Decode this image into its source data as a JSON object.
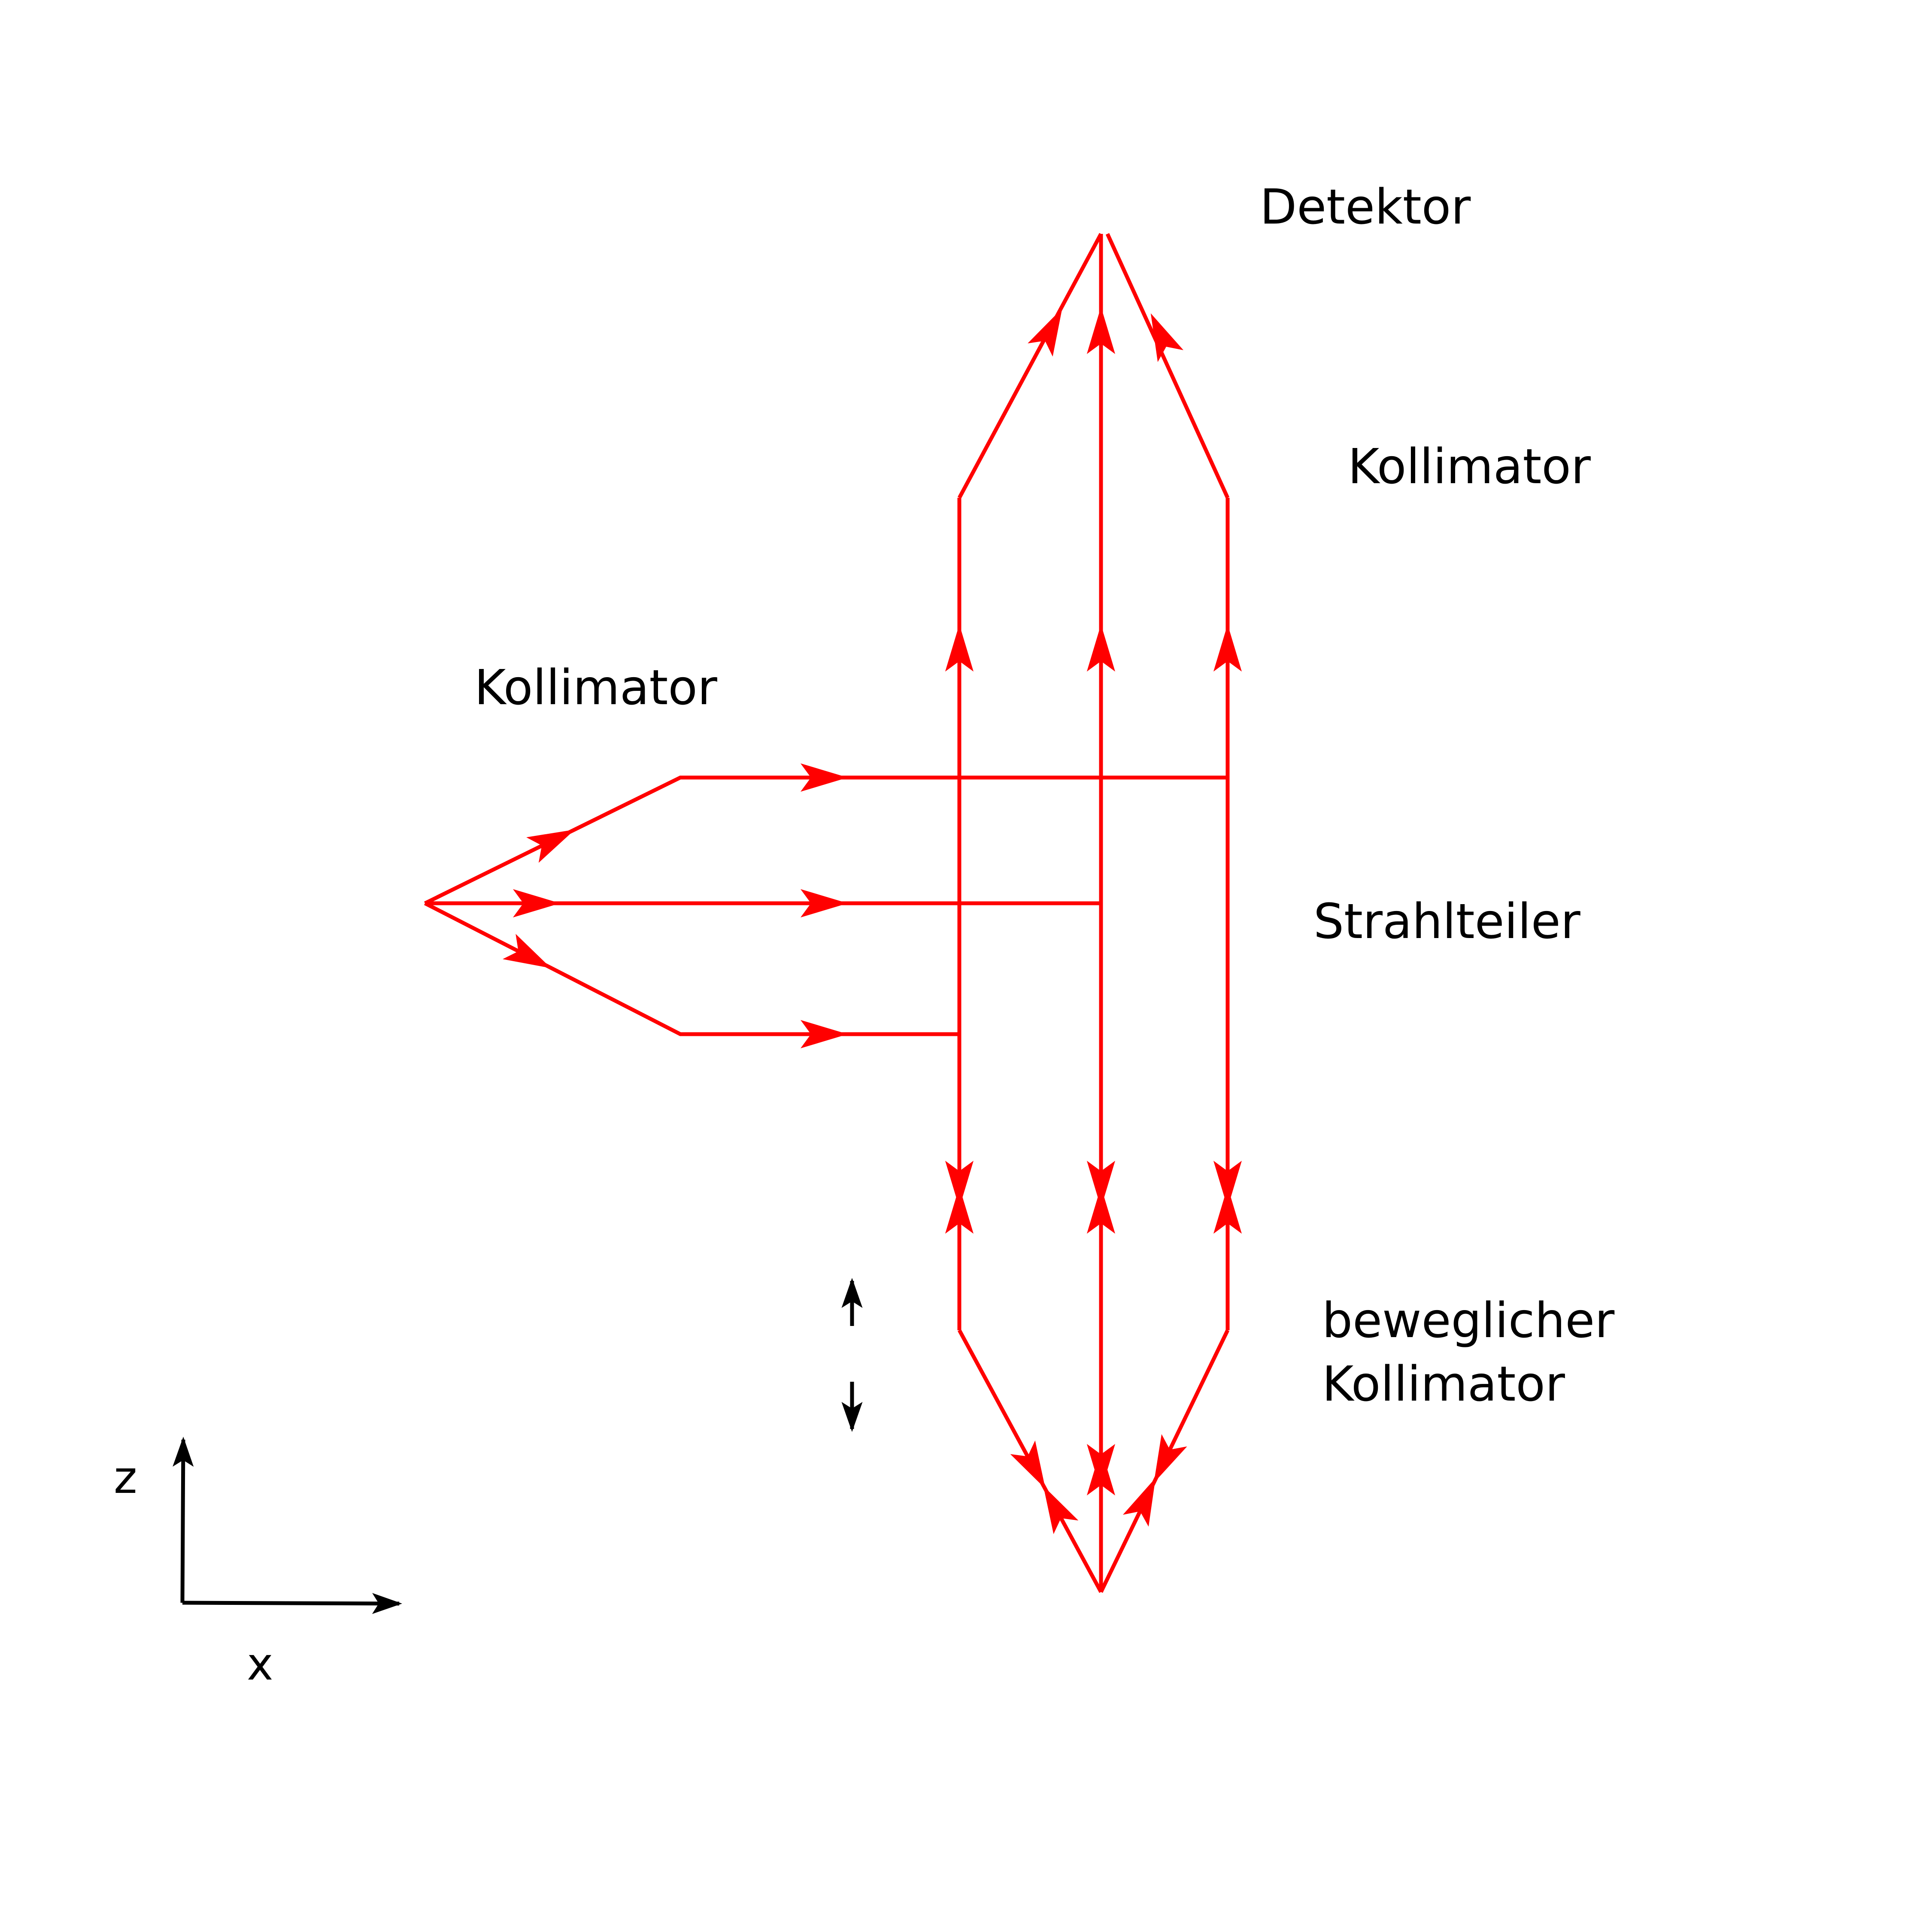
{
  "labels": {
    "detector": "Detektor",
    "collimator_top": "Kollimator",
    "collimator_left": "Kollimator",
    "beam_splitter": "Strahlteiler",
    "movable_collimator_line1": "beweglicher",
    "movable_collimator_line2": "Kollimator"
  },
  "axes": {
    "vertical": "z",
    "horizontal": "x"
  },
  "colors": {
    "beam": "#ff0000",
    "axis": "#000000",
    "background": "#ffffff"
  },
  "icons": {
    "motion_indicator": "double-headed-vertical-arrow-icon",
    "beam_direction": "arrowhead-icon"
  }
}
